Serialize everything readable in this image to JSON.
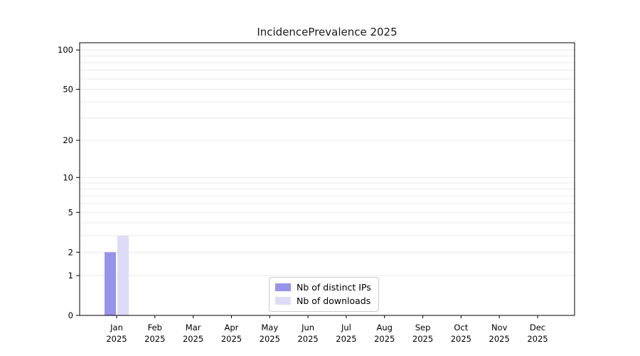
{
  "chart_data": {
    "type": "bar",
    "title": "IncidencePrevalence 2025",
    "categories": [
      "Jan",
      "Feb",
      "Mar",
      "Apr",
      "May",
      "Jun",
      "Jul",
      "Aug",
      "Sep",
      "Oct",
      "Nov",
      "Dec"
    ],
    "category_year": "2025",
    "series": [
      {
        "name": "Nb of distinct IPs",
        "color": "#9793ea",
        "values": [
          2,
          0,
          0,
          0,
          0,
          0,
          0,
          0,
          0,
          0,
          0,
          0
        ]
      },
      {
        "name": "Nb of downloads",
        "color": "#dcdcf8",
        "values": [
          3,
          0,
          0,
          0,
          0,
          0,
          0,
          0,
          0,
          0,
          0,
          0
        ]
      }
    ],
    "yscale": "log1p",
    "yticks": [
      0,
      1,
      2,
      5,
      10,
      20,
      50,
      100
    ],
    "ylim": [
      0,
      114
    ],
    "grid": true,
    "legend_position": "lower center",
    "axis_color": "#000000",
    "grid_color": "#e8e8e8"
  }
}
